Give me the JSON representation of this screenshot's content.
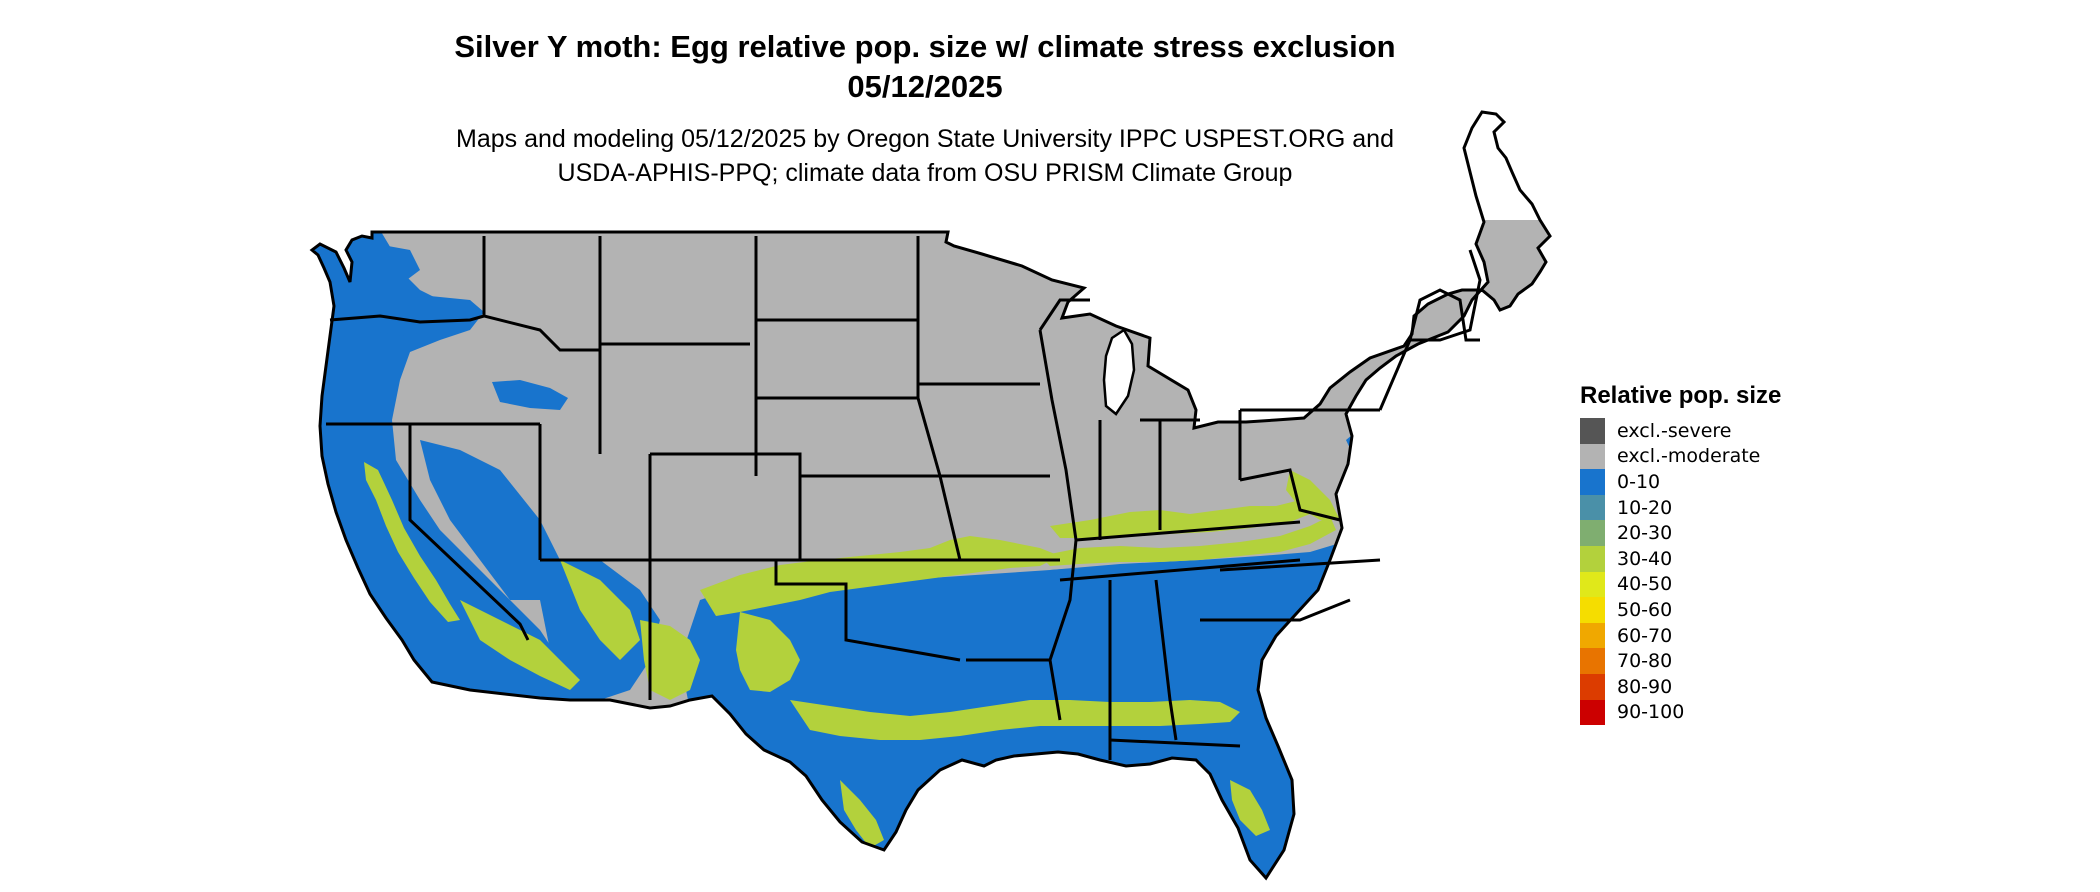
{
  "header": {
    "title_line1": "Silver Y moth: Egg relative pop. size w/ climate stress exclusion",
    "title_line2": "05/12/2025",
    "subtitle_line1": "Maps and modeling 05/12/2025 by Oregon State University IPPC USPEST.ORG and",
    "subtitle_line2": "USDA-APHIS-PPQ; climate data from OSU PRISM Climate Group"
  },
  "legend": {
    "title": "Relative pop. size",
    "items": [
      {
        "label": "excl.-severe",
        "color": "#555555"
      },
      {
        "label": "excl.-moderate",
        "color": "#b3b3b3"
      },
      {
        "label": "0-10",
        "color": "#1874cd"
      },
      {
        "label": "10-20",
        "color": "#4a90a8"
      },
      {
        "label": "20-30",
        "color": "#7fae70"
      },
      {
        "label": "30-40",
        "color": "#b3d13c"
      },
      {
        "label": "40-50",
        "color": "#e0e81a"
      },
      {
        "label": "50-60",
        "color": "#f5dd00"
      },
      {
        "label": "60-70",
        "color": "#f0a800"
      },
      {
        "label": "70-80",
        "color": "#e87400"
      },
      {
        "label": "80-90",
        "color": "#dc3c00"
      },
      {
        "label": "90-100",
        "color": "#cc0000"
      }
    ]
  },
  "map": {
    "region": "contiguous-united-states",
    "colors": {
      "excluded_moderate": "#b3b3b3",
      "range_0_10": "#1874cd",
      "range_30_40": "#b3d13c",
      "state_border": "#000000",
      "water": "#ffffff"
    }
  }
}
